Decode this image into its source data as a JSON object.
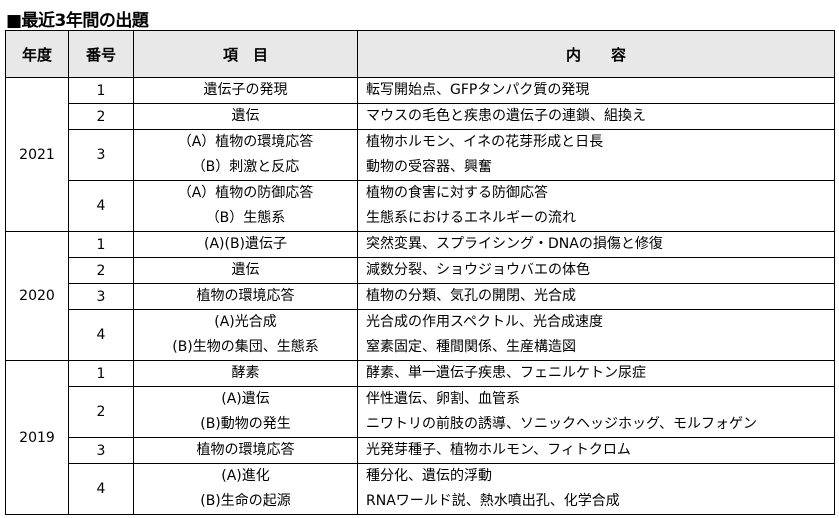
{
  "title": "■最近3年間の出題",
  "headers": [
    "年度",
    "番号",
    "項　目",
    "内　　容"
  ],
  "years": [
    {
      "year": "2021",
      "rows": [
        {
          "no": "1",
          "items": [
            "遺伝子の発現"
          ],
          "contents": [
            "転写開始点、GFPタンパク質の発現"
          ]
        },
        {
          "no": "2",
          "items": [
            "遺伝"
          ],
          "contents": [
            "マウスの毛色と疾患の遺伝子の連鎖、組換え"
          ]
        },
        {
          "no": "3",
          "items": [
            "（A）植物の環境応答",
            "（B）刺激と反応"
          ],
          "contents": [
            "植物ホルモン、イネの花芽形成と日長",
            "動物の受容器、興奮"
          ]
        },
        {
          "no": "4",
          "items": [
            "（A）植物の防御応答",
            "（B）生態系"
          ],
          "contents": [
            "植物の食害に対する防御応答",
            "生態系におけるエネルギーの流れ"
          ]
        }
      ]
    },
    {
      "year": "2020",
      "rows": [
        {
          "no": "1",
          "items": [
            "(A)(B)遺伝子"
          ],
          "contents": [
            "突然変異、スプライシング・DNAの損傷と修復"
          ]
        },
        {
          "no": "2",
          "items": [
            "遺伝"
          ],
          "contents": [
            "減数分裂、ショウジョウバエの体色"
          ]
        },
        {
          "no": "3",
          "items": [
            "植物の環境応答"
          ],
          "contents": [
            "植物の分類、気孔の開閉、光合成"
          ]
        },
        {
          "no": "4",
          "items": [
            "(A)光合成",
            "(B)生物の集団、生態系"
          ],
          "contents": [
            "光合成の作用スペクトル、光合成速度",
            "窒素固定、種間関係、生産構造図"
          ]
        }
      ]
    },
    {
      "year": "2019",
      "rows": [
        {
          "no": "1",
          "items": [
            "酵素"
          ],
          "contents": [
            "酵素、単一遺伝子疾患、フェニルケトン尿症"
          ]
        },
        {
          "no": "2",
          "items": [
            "(A)遺伝",
            "(B)動物の発生"
          ],
          "contents": [
            "伴性遺伝、卵割、血管系",
            "ニワトリの前肢の誘導、ソニックヘッジホッグ、モルフォゲン"
          ]
        },
        {
          "no": "3",
          "items": [
            "植物の環境応答"
          ],
          "contents": [
            "光発芽種子、植物ホルモン、フィトクロム"
          ]
        },
        {
          "no": "4",
          "items": [
            "(A)進化",
            "(B)生命の起源"
          ],
          "contents": [
            "種分化、遺伝的浮動",
            "RNAワールド説、熱水噴出孔、化学合成"
          ]
        }
      ]
    }
  ]
}
